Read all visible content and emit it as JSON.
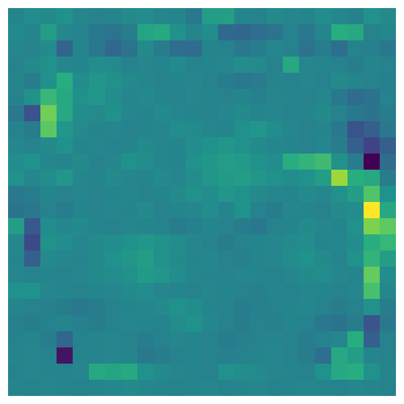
{
  "chart_data": {
    "type": "heatmap",
    "color": "viridis",
    "tick_labels": false,
    "color_range": [
      0,
      1
    ],
    "cells": [
      [
        0.45,
        0.48,
        0.47,
        0.5,
        0.46,
        0.44,
        0.45,
        0.47,
        0.48,
        0.46,
        0.45,
        0.4,
        0.55,
        0.56,
        0.45,
        0.44,
        0.47,
        0.46,
        0.45,
        0.48,
        0.46,
        0.44,
        0.5,
        0.47
      ],
      [
        0.47,
        0.45,
        0.55,
        0.46,
        0.44,
        0.4,
        0.38,
        0.42,
        0.58,
        0.6,
        0.5,
        0.45,
        0.48,
        0.34,
        0.33,
        0.36,
        0.38,
        0.44,
        0.4,
        0.45,
        0.62,
        0.6,
        0.44,
        0.46
      ],
      [
        0.46,
        0.44,
        0.47,
        0.32,
        0.45,
        0.4,
        0.34,
        0.38,
        0.47,
        0.42,
        0.36,
        0.35,
        0.45,
        0.44,
        0.4,
        0.42,
        0.46,
        0.44,
        0.38,
        0.42,
        0.36,
        0.44,
        0.43,
        0.4
      ],
      [
        0.44,
        0.47,
        0.5,
        0.46,
        0.45,
        0.48,
        0.47,
        0.44,
        0.46,
        0.45,
        0.47,
        0.44,
        0.45,
        0.46,
        0.48,
        0.47,
        0.44,
        0.6,
        0.46,
        0.45,
        0.44,
        0.42,
        0.45,
        0.44
      ],
      [
        0.45,
        0.42,
        0.5,
        0.62,
        0.48,
        0.52,
        0.5,
        0.47,
        0.46,
        0.44,
        0.45,
        0.46,
        0.44,
        0.42,
        0.4,
        0.41,
        0.45,
        0.44,
        0.46,
        0.44,
        0.47,
        0.45,
        0.44,
        0.43
      ],
      [
        0.44,
        0.5,
        0.66,
        0.6,
        0.5,
        0.52,
        0.48,
        0.46,
        0.47,
        0.45,
        0.44,
        0.46,
        0.45,
        0.44,
        0.45,
        0.43,
        0.46,
        0.45,
        0.44,
        0.46,
        0.4,
        0.35,
        0.38,
        0.44
      ],
      [
        0.4,
        0.25,
        0.78,
        0.6,
        0.48,
        0.47,
        0.5,
        0.46,
        0.45,
        0.47,
        0.46,
        0.45,
        0.44,
        0.46,
        0.47,
        0.45,
        0.46,
        0.44,
        0.45,
        0.47,
        0.44,
        0.4,
        0.38,
        0.42
      ],
      [
        0.44,
        0.42,
        0.74,
        0.52,
        0.47,
        0.45,
        0.46,
        0.44,
        0.45,
        0.46,
        0.48,
        0.47,
        0.46,
        0.45,
        0.5,
        0.52,
        0.48,
        0.46,
        0.44,
        0.45,
        0.4,
        0.25,
        0.3,
        0.4
      ],
      [
        0.46,
        0.44,
        0.47,
        0.5,
        0.45,
        0.46,
        0.44,
        0.45,
        0.47,
        0.46,
        0.45,
        0.48,
        0.5,
        0.52,
        0.5,
        0.47,
        0.46,
        0.45,
        0.44,
        0.46,
        0.42,
        0.3,
        0.2,
        0.3
      ],
      [
        0.48,
        0.5,
        0.46,
        0.45,
        0.47,
        0.44,
        0.46,
        0.5,
        0.48,
        0.46,
        0.45,
        0.5,
        0.52,
        0.55,
        0.54,
        0.5,
        0.48,
        0.62,
        0.65,
        0.68,
        0.5,
        0.42,
        0.0,
        0.35
      ],
      [
        0.5,
        0.46,
        0.48,
        0.52,
        0.46,
        0.45,
        0.47,
        0.46,
        0.45,
        0.47,
        0.46,
        0.48,
        0.52,
        0.54,
        0.55,
        0.52,
        0.5,
        0.48,
        0.5,
        0.55,
        0.85,
        0.62,
        0.6,
        0.42
      ],
      [
        0.4,
        0.42,
        0.45,
        0.44,
        0.46,
        0.44,
        0.45,
        0.46,
        0.44,
        0.45,
        0.47,
        0.5,
        0.48,
        0.52,
        0.5,
        0.47,
        0.46,
        0.45,
        0.47,
        0.46,
        0.5,
        0.55,
        0.72,
        0.5
      ],
      [
        0.38,
        0.4,
        0.44,
        0.42,
        0.45,
        0.44,
        0.46,
        0.45,
        0.47,
        0.44,
        0.45,
        0.46,
        0.48,
        0.45,
        0.5,
        0.44,
        0.42,
        0.46,
        0.45,
        0.44,
        0.47,
        0.48,
        1.0,
        0.6
      ],
      [
        0.55,
        0.28,
        0.48,
        0.46,
        0.47,
        0.45,
        0.44,
        0.46,
        0.45,
        0.44,
        0.42,
        0.43,
        0.45,
        0.44,
        0.42,
        0.4,
        0.44,
        0.45,
        0.47,
        0.46,
        0.45,
        0.5,
        0.8,
        0.75
      ],
      [
        0.46,
        0.22,
        0.5,
        0.48,
        0.46,
        0.47,
        0.48,
        0.5,
        0.52,
        0.5,
        0.48,
        0.46,
        0.44,
        0.42,
        0.44,
        0.45,
        0.46,
        0.47,
        0.48,
        0.45,
        0.46,
        0.48,
        0.62,
        0.66
      ],
      [
        0.45,
        0.3,
        0.47,
        0.46,
        0.45,
        0.47,
        0.5,
        0.52,
        0.55,
        0.5,
        0.47,
        0.45,
        0.46,
        0.44,
        0.43,
        0.45,
        0.46,
        0.48,
        0.5,
        0.47,
        0.45,
        0.5,
        0.65,
        0.55
      ],
      [
        0.46,
        0.44,
        0.45,
        0.44,
        0.46,
        0.47,
        0.48,
        0.5,
        0.54,
        0.52,
        0.48,
        0.46,
        0.45,
        0.44,
        0.46,
        0.45,
        0.44,
        0.46,
        0.47,
        0.48,
        0.46,
        0.45,
        0.76,
        0.48
      ],
      [
        0.5,
        0.5,
        0.46,
        0.45,
        0.44,
        0.45,
        0.46,
        0.47,
        0.48,
        0.46,
        0.45,
        0.44,
        0.46,
        0.45,
        0.44,
        0.43,
        0.45,
        0.44,
        0.46,
        0.45,
        0.44,
        0.46,
        0.7,
        0.46
      ],
      [
        0.45,
        0.44,
        0.43,
        0.42,
        0.4,
        0.42,
        0.44,
        0.45,
        0.46,
        0.47,
        0.5,
        0.48,
        0.45,
        0.44,
        0.42,
        0.43,
        0.44,
        0.45,
        0.46,
        0.44,
        0.42,
        0.44,
        0.5,
        0.42
      ],
      [
        0.43,
        0.42,
        0.44,
        0.45,
        0.43,
        0.42,
        0.44,
        0.46,
        0.45,
        0.44,
        0.48,
        0.5,
        0.46,
        0.44,
        0.42,
        0.44,
        0.43,
        0.45,
        0.44,
        0.4,
        0.38,
        0.42,
        0.26,
        0.4
      ],
      [
        0.44,
        0.45,
        0.42,
        0.33,
        0.44,
        0.45,
        0.46,
        0.44,
        0.42,
        0.44,
        0.46,
        0.45,
        0.44,
        0.42,
        0.43,
        0.44,
        0.45,
        0.44,
        0.42,
        0.44,
        0.46,
        0.62,
        0.3,
        0.44
      ],
      [
        0.45,
        0.46,
        0.44,
        0.05,
        0.45,
        0.44,
        0.46,
        0.45,
        0.4,
        0.42,
        0.44,
        0.45,
        0.44,
        0.43,
        0.44,
        0.45,
        0.46,
        0.44,
        0.42,
        0.36,
        0.6,
        0.55,
        0.45,
        0.44
      ],
      [
        0.44,
        0.46,
        0.45,
        0.44,
        0.46,
        0.6,
        0.58,
        0.6,
        0.5,
        0.47,
        0.46,
        0.45,
        0.44,
        0.5,
        0.48,
        0.47,
        0.46,
        0.45,
        0.44,
        0.5,
        0.6,
        0.62,
        0.5,
        0.45
      ],
      [
        0.45,
        0.44,
        0.46,
        0.45,
        0.44,
        0.45,
        0.46,
        0.47,
        0.46,
        0.45,
        0.44,
        0.45,
        0.46,
        0.44,
        0.45,
        0.46,
        0.44,
        0.45,
        0.46,
        0.45,
        0.44,
        0.46,
        0.45,
        0.44
      ]
    ]
  }
}
